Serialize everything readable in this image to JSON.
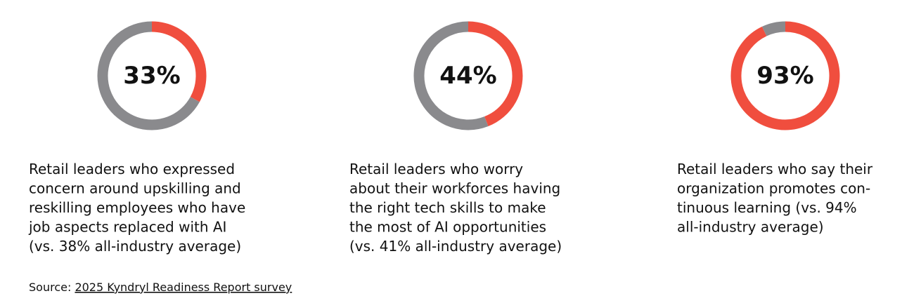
{
  "chart_data": [
    {
      "type": "donut",
      "values": [
        33,
        67
      ],
      "value_labels": [
        "33%",
        null
      ],
      "colors": [
        "#f04e3e",
        "#8a8a8d"
      ],
      "caption": [
        "Retail leaders who expressed",
        "concern around upskilling and",
        "reskilling employees who have",
        "job aspects replaced with AI",
        "(vs. 38% all-industry average)"
      ]
    },
    {
      "type": "donut",
      "values": [
        44,
        56
      ],
      "value_labels": [
        "44%",
        null
      ],
      "colors": [
        "#f04e3e",
        "#8a8a8d"
      ],
      "caption": [
        "Retail leaders who worry",
        "about their workforces having",
        "the right tech skills to make",
        "the most of AI opportunities",
        "(vs. 41% all-industry average)"
      ]
    },
    {
      "type": "donut",
      "values": [
        93,
        7
      ],
      "value_labels": [
        "93%",
        null
      ],
      "colors": [
        "#f04e3e",
        "#8a8a8d"
      ],
      "caption": [
        "Retail leaders who say their",
        "organization promotes con-",
        "tinuous learning (vs. 94%",
        "all-industry average)"
      ]
    }
  ],
  "source": {
    "prefix": "Source:",
    "link": "2025 Kyndryl Readiness Report survey"
  }
}
